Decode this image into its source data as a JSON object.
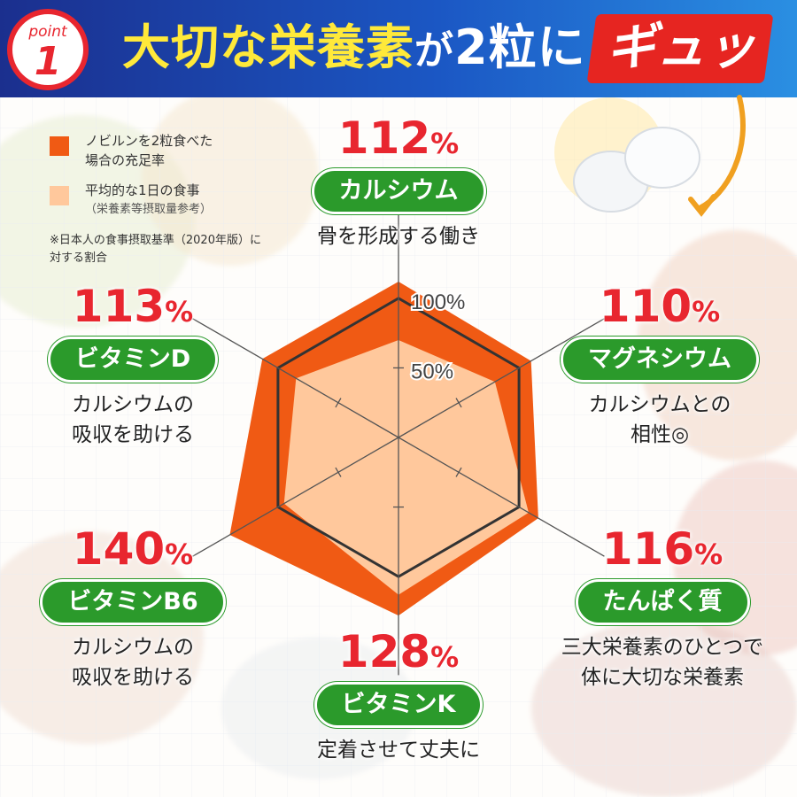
{
  "header": {
    "point_word": "point",
    "point_number": "1",
    "title_part1": "大切な",
    "title_part2": "栄養素",
    "title_part3": "が",
    "title_part4": "2",
    "title_part5": "粒に",
    "burst_text": "ギュッ"
  },
  "legend": {
    "items": [
      {
        "text": "ノビルンを2粒食べた",
        "text2": "場合の充足率",
        "color": "#f05a14"
      },
      {
        "text": "平均的な1日の食事",
        "text2": "（栄養素等摂取量参考）",
        "color": "#ffc89c"
      }
    ],
    "note_line1": "※日本人の食事摂取基準（2020年版）に",
    "note_line2": "対する割合"
  },
  "colors": {
    "header_blue": "#1b57c4",
    "accent_red": "#e8262f",
    "pill_green": "#2b9a2b",
    "product_orange": "#f05a14",
    "average_peach": "#ffc89c"
  },
  "chart_data": {
    "type": "radar",
    "axes": [
      "カルシウム",
      "マグネシウム",
      "たんぱく質",
      "ビタミンK",
      "ビタミンB6",
      "ビタミンD"
    ],
    "tick_labels": [
      "50%",
      "100%"
    ],
    "series": [
      {
        "values": [
          112,
          110,
          116,
          128,
          140,
          113
        ]
      },
      {
        "values": [
          70,
          80,
          108,
          113,
          95,
          85
        ]
      }
    ],
    "rmax": 140
  },
  "nutrients": [
    {
      "pct": "112",
      "sign": "%",
      "name": "カルシウム",
      "desc1": "骨を形成する働き",
      "desc2": ""
    },
    {
      "pct": "110",
      "sign": "%",
      "name": "マグネシウム",
      "desc1": "カルシウムとの",
      "desc2": "相性◎"
    },
    {
      "pct": "116",
      "sign": "%",
      "name": "たんぱく質",
      "desc1": "三大栄養素のひとつで",
      "desc2": "体に大切な栄養素"
    },
    {
      "pct": "128",
      "sign": "%",
      "name": "ビタミンK",
      "desc1": "定着させて丈夫に",
      "desc2": ""
    },
    {
      "pct": "140",
      "sign": "%",
      "name": "ビタミンB6",
      "desc1": "カルシウムの",
      "desc2": "吸収を助ける"
    },
    {
      "pct": "113",
      "sign": "%",
      "name": "ビタミンD",
      "desc1": "カルシウムの",
      "desc2": "吸収を助ける"
    }
  ]
}
